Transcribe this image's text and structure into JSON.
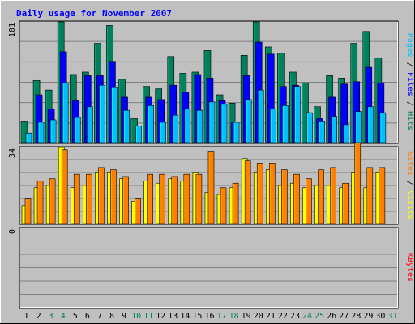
{
  "chart_data": {
    "type": "bar",
    "title": "Daily usage for November 2007",
    "categories": [
      "1",
      "2",
      "3",
      "4",
      "5",
      "6",
      "7",
      "8",
      "9",
      "10",
      "11",
      "12",
      "13",
      "14",
      "15",
      "16",
      "17",
      "18",
      "19",
      "20",
      "21",
      "22",
      "23",
      "24",
      "25",
      "26",
      "27",
      "28",
      "29",
      "30",
      "31"
    ],
    "weekend_days": [
      "3",
      "4",
      "10",
      "11",
      "17",
      "18",
      "24",
      "25",
      "31"
    ],
    "panels": [
      {
        "name": "hits-files-pages",
        "ymax": 101,
        "ymax_label": "101",
        "axis_legend": [
          "Pages",
          "Files",
          "Hits"
        ],
        "series": [
          {
            "name": "Hits",
            "color": "#00805C",
            "values": [
              18,
              52,
              44,
              101,
              57,
              59,
              83,
              98,
              53,
              20,
              47,
              45,
              72,
              58,
              59,
              77,
              40,
              33,
              73,
              101,
              80,
              75,
              59,
              50,
              30,
              56,
              54,
              83,
              93,
              71
            ]
          },
          {
            "name": "Files",
            "color": "#0000FF",
            "values": [
              null,
              40,
              28,
              76,
              35,
              56,
              56,
              68,
              38,
              null,
              38,
              36,
              48,
              42,
              57,
              54,
              35,
              17,
              56,
              84,
              74,
              47,
              48,
              null,
              20,
              38,
              49,
              51,
              63,
              50
            ]
          },
          {
            "name": "Pages",
            "color": "#00BFFF",
            "values": [
              8,
              17,
              19,
              50,
              21,
              30,
              48,
              46,
              27,
              14,
              31,
              17,
              23,
              28,
              27,
              34,
              32,
              17,
              36,
              44,
              28,
              31,
              47,
              25,
              18,
              22,
              15,
              26,
              30,
              25
            ]
          }
        ]
      },
      {
        "name": "visits-sites",
        "ymax": 34,
        "ymax_label": "34",
        "axis_legend": [
          "Sites",
          "Visits"
        ],
        "series": [
          {
            "name": "Visits",
            "color": "#FFFF00",
            "values": [
              8,
              16,
              17,
              34,
              16,
              17,
              23,
              23,
              20,
              10,
              19,
              18,
              20,
              19,
              23,
              14,
              13,
              16,
              29,
              23,
              24,
              17,
              18,
              16,
              17,
              17,
              16,
              23,
              16,
              23
            ]
          },
          {
            "name": "Sites",
            "color": "#FF8000",
            "values": [
              11,
              19,
              20,
              33,
              22,
              22,
              25,
              24,
              21,
              11,
              22,
              22,
              21,
              22,
              22,
              32,
              16,
              18,
              28,
              27,
              27,
              24,
              22,
              20,
              24,
              25,
              18,
              36,
              25,
              25
            ]
          }
        ]
      },
      {
        "name": "kbytes",
        "ymax": 0,
        "ymax_label": "0",
        "axis_legend": [
          "KBytes"
        ],
        "series": [
          {
            "name": "KBytes",
            "color": "#FF0000",
            "values": []
          }
        ]
      }
    ],
    "colors": {
      "background": "#C0C0C0",
      "plot_border": "#000000",
      "gridline": "#808080",
      "title": "#0000FF",
      "day_label_weekday": "#000000",
      "day_label_weekend": "#00805C"
    },
    "grid": true,
    "legend_placement": "right-vertical"
  }
}
